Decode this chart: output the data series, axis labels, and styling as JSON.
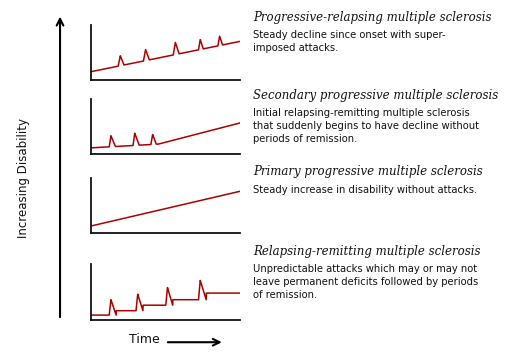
{
  "background_color": "#ffffff",
  "panels": [
    {
      "title": "Progressive-relapsing multiple sclerosis",
      "description": "Steady decline since onset with super-\nimposed attacks.",
      "type": "progressive_relapsing"
    },
    {
      "title": "Secondary progressive multiple sclerosis",
      "description": "Initial relapsing-remitting multiple sclerosis\nthat suddenly begins to have decline without\nperiods of remission.",
      "type": "secondary_progressive"
    },
    {
      "title": "Primary progressive multiple sclerosis",
      "description": "Steady increase in disability without attacks.",
      "type": "primary_progressive"
    },
    {
      "title": "Relapsing-remitting multiple sclerosis",
      "description": "Unpredictable attacks which may or may not\nleave permanent deficits followed by periods\nof remission.",
      "type": "relapsing_remitting"
    }
  ],
  "line_color": "#aa0000",
  "axis_color": "#111111",
  "text_color": "#111111",
  "title_fontsize": 8.5,
  "desc_fontsize": 7.2,
  "ylabel": "Increasing Disability",
  "xlabel": "Time"
}
